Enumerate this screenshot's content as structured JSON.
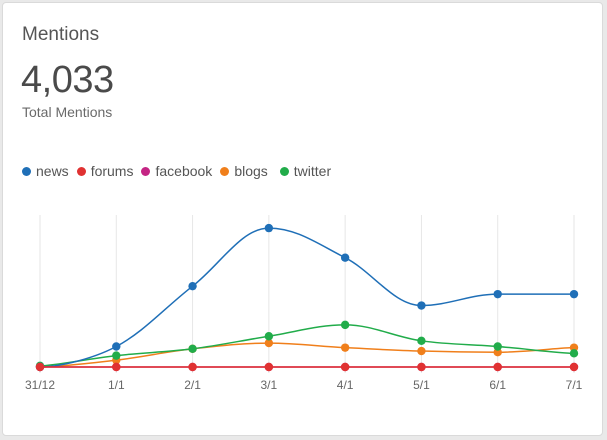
{
  "card": {
    "title": "Mentions",
    "total": "4,033",
    "total_label": "Total Mentions"
  },
  "colors": {
    "news": "#1f6fb7",
    "forums": "#e03232",
    "facebook": "#c42584",
    "blogs": "#f07f1b",
    "twitter": "#21ac4a",
    "grid": "#e6e6e6",
    "axis_text": "#666666"
  },
  "legend": [
    {
      "key": "news",
      "label": "news"
    },
    {
      "key": "forums",
      "label": "forums"
    },
    {
      "key": "facebook",
      "label": "facebook"
    },
    {
      "key": "blogs",
      "label": "blogs"
    },
    {
      "key": "twitter",
      "label": "twitter"
    }
  ],
  "chart_data": {
    "type": "line",
    "title": "",
    "xlabel": "",
    "ylabel": "",
    "categories": [
      "31/12",
      "1/1",
      "2/1",
      "3/1",
      "4/1",
      "5/1",
      "6/1",
      "7/1"
    ],
    "ylim": [
      0,
      130
    ],
    "grid": "vertical lines at each category",
    "legend_position": "top-left",
    "smooth": true,
    "series": [
      {
        "key": "news",
        "name": "news",
        "values": [
          0,
          18,
          71,
          122,
          96,
          54,
          64,
          64
        ]
      },
      {
        "key": "forums",
        "name": "forums",
        "values": [
          0,
          0,
          0,
          0,
          0,
          0,
          0,
          0
        ]
      },
      {
        "key": "facebook",
        "name": "facebook",
        "values": [
          0,
          0,
          0,
          0,
          0,
          0,
          0,
          0
        ]
      },
      {
        "key": "blogs",
        "name": "blogs",
        "values": [
          0,
          6,
          16,
          21,
          17,
          14,
          13,
          17
        ]
      },
      {
        "key": "twitter",
        "name": "twitter",
        "values": [
          1,
          10,
          16,
          27,
          37,
          23,
          18,
          12
        ]
      }
    ]
  }
}
